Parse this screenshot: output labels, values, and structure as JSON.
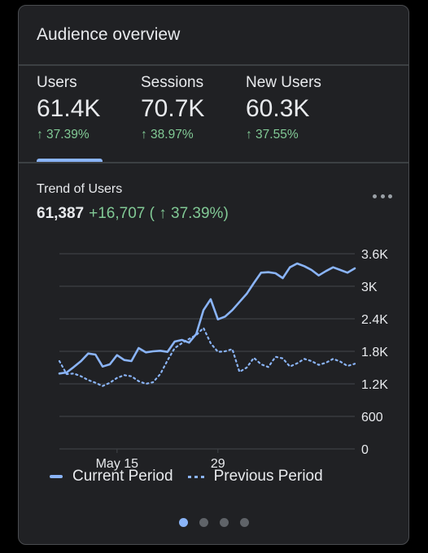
{
  "card": {
    "title": "Audience overview"
  },
  "metrics": [
    {
      "label": "Users",
      "value": "61.4K",
      "change": "↑ 37.39%"
    },
    {
      "label": "Sessions",
      "value": "70.7K",
      "change": "↑ 38.97%"
    },
    {
      "label": "New Users",
      "value": "60.3K",
      "change": "↑ 37.55%"
    }
  ],
  "trend": {
    "title": "Trend of Users",
    "total": "61,387",
    "delta": "+16,707 ( ↑ 37.39%)"
  },
  "colors": {
    "accent": "#8ab4f8",
    "positive": "#81c995",
    "text": "#e8eaed",
    "muted": "#9aa0a6",
    "grid": "#3c4043",
    "card_bg": "#202124"
  },
  "icons": {
    "more": "more-horizontal-icon"
  },
  "legend": {
    "current": "Current Period",
    "previous": "Previous Period"
  },
  "pager": {
    "pages": 4,
    "active_index": 0
  },
  "chart_data": {
    "type": "line",
    "x": [
      1,
      2,
      3,
      4,
      5,
      6,
      7,
      8,
      9,
      10,
      11,
      12,
      13,
      14,
      15,
      16,
      17,
      18,
      19,
      20,
      21,
      22,
      23,
      24,
      25,
      26,
      27,
      28,
      29,
      30,
      31,
      32,
      33,
      34,
      35,
      36,
      37,
      38,
      39,
      40,
      41,
      42
    ],
    "xticks": [
      {
        "x": 9,
        "label": "May 15"
      },
      {
        "x": 23,
        "label": "29"
      }
    ],
    "ylim": [
      0,
      3600
    ],
    "yticks": [
      "0",
      "600",
      "1.2K",
      "1.8K",
      "2.4K",
      "3K",
      "3.6K"
    ],
    "ytick_values": [
      0,
      600,
      1200,
      1800,
      2400,
      3000,
      3600
    ],
    "series": [
      {
        "name": "Current Period",
        "style": "solid",
        "values": [
          1390,
          1410,
          1510,
          1620,
          1760,
          1740,
          1520,
          1560,
          1730,
          1640,
          1620,
          1860,
          1780,
          1800,
          1810,
          1790,
          1980,
          2010,
          1960,
          2120,
          2560,
          2760,
          2390,
          2440,
          2560,
          2710,
          2860,
          3060,
          3250,
          3260,
          3240,
          3150,
          3350,
          3420,
          3370,
          3300,
          3200,
          3280,
          3350,
          3300,
          3250,
          3330
        ]
      },
      {
        "name": "Previous Period",
        "style": "dotted",
        "values": [
          1620,
          1380,
          1390,
          1340,
          1270,
          1220,
          1160,
          1220,
          1310,
          1360,
          1340,
          1250,
          1200,
          1230,
          1380,
          1630,
          1860,
          1950,
          2030,
          2100,
          2230,
          1950,
          1790,
          1800,
          1840,
          1420,
          1500,
          1680,
          1560,
          1510,
          1700,
          1670,
          1520,
          1580,
          1660,
          1620,
          1550,
          1590,
          1660,
          1610,
          1530,
          1570
        ]
      }
    ]
  }
}
